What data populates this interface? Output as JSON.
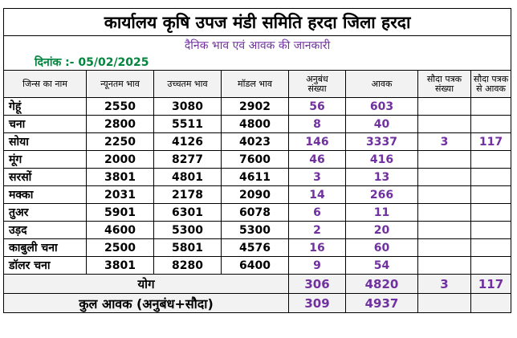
{
  "title": "कार्यालय कृषि उपज मंडी समिति हरदा जिला हरदा",
  "subtitle": "दैनिक भाव एवं आवक की जानकारी",
  "date_label": "दिनांक :- 05/02/2025",
  "headers": {
    "name": "जिन्स का नाम",
    "min": "न्यूनतम भाव",
    "max": "उच्चतम भाव",
    "modal": "मॉडल भाव",
    "anubandh_1": "अनुबंध",
    "anubandh_2": "संख्या",
    "aavak": "आवक",
    "sauda_count_1": "सौदा पत्रक",
    "sauda_count_2": "संख्या",
    "sauda_aavak_1": "सौदा पत्रक",
    "sauda_aavak_2": "से आवक"
  },
  "rows": [
    {
      "name": "गेहूं",
      "min": "2550",
      "max": "3080",
      "modal": "2902",
      "anubandh": "56",
      "aavak": "603",
      "sauda_count": "",
      "sauda_aavak": ""
    },
    {
      "name": "चना",
      "min": "2800",
      "max": "5511",
      "modal": "4800",
      "anubandh": "8",
      "aavak": "40",
      "sauda_count": "",
      "sauda_aavak": ""
    },
    {
      "name": "सोया",
      "min": "2250",
      "max": "4126",
      "modal": "4023",
      "anubandh": "146",
      "aavak": "3337",
      "sauda_count": "3",
      "sauda_aavak": "117"
    },
    {
      "name": "मूंग",
      "min": "2000",
      "max": "8277",
      "modal": "7600",
      "anubandh": "46",
      "aavak": "416",
      "sauda_count": "",
      "sauda_aavak": ""
    },
    {
      "name": "सरसों",
      "min": "3801",
      "max": "4801",
      "modal": "4611",
      "anubandh": "3",
      "aavak": "13",
      "sauda_count": "",
      "sauda_aavak": ""
    },
    {
      "name": "मक्का",
      "min": "2031",
      "max": "2178",
      "modal": "2090",
      "anubandh": "14",
      "aavak": "266",
      "sauda_count": "",
      "sauda_aavak": ""
    },
    {
      "name": "तुअर",
      "min": "5901",
      "max": "6301",
      "modal": "6078",
      "anubandh": "6",
      "aavak": "11",
      "sauda_count": "",
      "sauda_aavak": ""
    },
    {
      "name": "उड़द",
      "min": "4600",
      "max": "5300",
      "modal": "5300",
      "anubandh": "2",
      "aavak": "20",
      "sauda_count": "",
      "sauda_aavak": ""
    },
    {
      "name": "काबुली चना",
      "min": "2500",
      "max": "5801",
      "modal": "4576",
      "anubandh": "16",
      "aavak": "60",
      "sauda_count": "",
      "sauda_aavak": ""
    },
    {
      "name": "डॉलर चना",
      "min": "3801",
      "max": "8280",
      "modal": "6400",
      "anubandh": "9",
      "aavak": "54",
      "sauda_count": "",
      "sauda_aavak": ""
    }
  ],
  "total": {
    "label": "योग",
    "anubandh": "306",
    "aavak": "4820",
    "sauda_count": "3",
    "sauda_aavak": "117"
  },
  "grand_total": {
    "label": "कुल आवक (अनुबंध+सौदा)",
    "anubandh": "309",
    "aavak": "4937"
  },
  "colors": {
    "accent_purple": "#7030a0",
    "date_green": "#00863d",
    "header_grey": "#f2f2f2"
  }
}
